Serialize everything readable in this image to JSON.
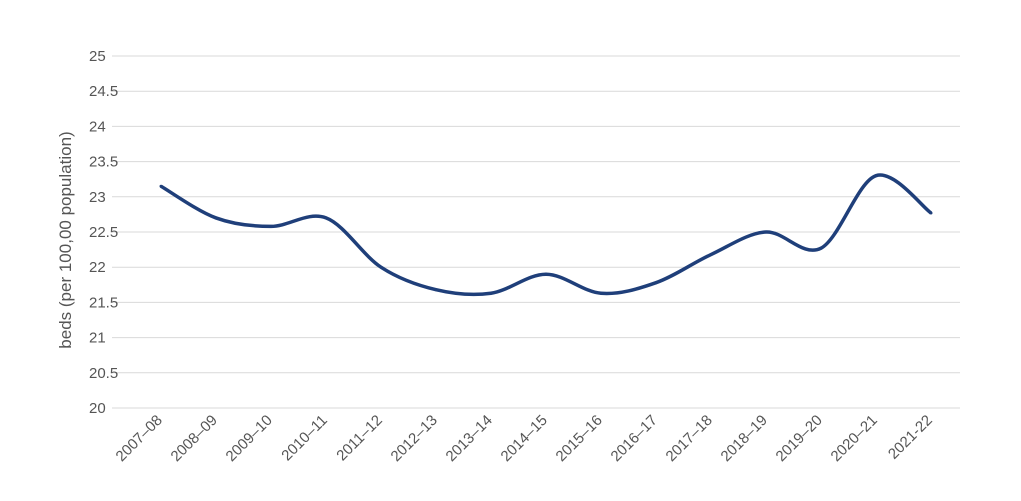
{
  "chart_data": {
    "type": "line",
    "title": "",
    "xlabel": "",
    "ylabel": "beds (per 100,00 population)",
    "ylim": [
      20,
      25
    ],
    "yticks": [
      "20",
      "20.5",
      "21",
      "21.5",
      "22",
      "22.5",
      "23",
      "23.5",
      "24",
      "24.5",
      "25"
    ],
    "grid": true,
    "legend": "none",
    "categories": [
      "2007–08",
      "2008–09",
      "2009–10",
      "2010–11",
      "2011–12",
      "2012–13",
      "2013–14",
      "2014–15",
      "2015–16",
      "2016–17",
      "2017–18",
      "2018–19",
      "2019–20",
      "2020–21",
      "2021-22"
    ],
    "series": [
      {
        "color": "#1f3f7a",
        "values": [
          23.15,
          22.7,
          22.58,
          22.7,
          22.0,
          21.68,
          21.63,
          21.9,
          21.63,
          21.78,
          22.18,
          22.5,
          22.27,
          23.3,
          22.77
        ]
      }
    ],
    "colors": {
      "grid": "#d9d9d9",
      "text": "#555555"
    }
  }
}
